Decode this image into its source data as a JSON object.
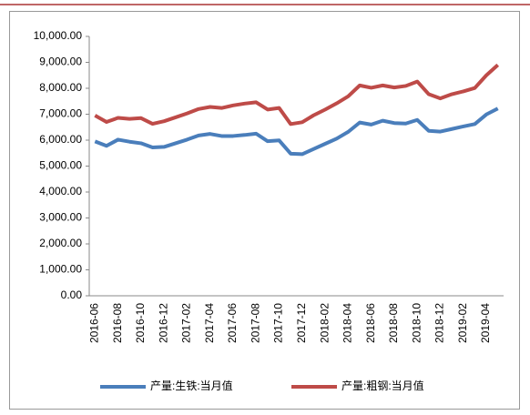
{
  "chart_data": {
    "type": "line",
    "categories": [
      "2016-06",
      null,
      "2016-08",
      null,
      "2016-10",
      null,
      "2016-12",
      null,
      "2017-02",
      null,
      "2017-04",
      null,
      "2017-06",
      null,
      "2017-08",
      null,
      "2017-10",
      null,
      "2017-12",
      null,
      "2018-02",
      null,
      "2018-04",
      null,
      "2018-06",
      null,
      "2018-08",
      null,
      "2018-10",
      null,
      "2018-12",
      null,
      "2019-02",
      null,
      "2019-04",
      null
    ],
    "series": [
      {
        "name": "产量:生铁:当月值",
        "color": "#4a7ebb",
        "values": [
          5950,
          5780,
          6020,
          5940,
          5880,
          5720,
          5740,
          5880,
          6020,
          6180,
          6240,
          6160,
          6160,
          6200,
          6250,
          5960,
          5990,
          5480,
          5460,
          5660,
          5860,
          6060,
          6320,
          6680,
          6600,
          6750,
          6660,
          6640,
          6780,
          6360,
          6330,
          6430,
          6530,
          6620,
          6990,
          7220
        ]
      },
      {
        "name": "产量:粗钢:当月值",
        "color": "#be4b48",
        "values": [
          6950,
          6700,
          6860,
          6820,
          6850,
          6630,
          6730,
          6880,
          7030,
          7200,
          7280,
          7240,
          7340,
          7410,
          7460,
          7180,
          7240,
          6620,
          6690,
          6960,
          7180,
          7420,
          7690,
          8110,
          8020,
          8110,
          8030,
          8090,
          8260,
          7770,
          7610,
          7770,
          7880,
          8010,
          8500,
          8900
        ]
      }
    ],
    "ylim": [
      0,
      10000
    ],
    "yticks": [
      {
        "value": 0,
        "label": "0.00"
      },
      {
        "value": 1000,
        "label": "1,000.00"
      },
      {
        "value": 2000,
        "label": "2,000.00"
      },
      {
        "value": 3000,
        "label": "3,000.00"
      },
      {
        "value": 4000,
        "label": "4,000.00"
      },
      {
        "value": 5000,
        "label": "5,000.00"
      },
      {
        "value": 6000,
        "label": "6,000.00"
      },
      {
        "value": 7000,
        "label": "7,000.00"
      },
      {
        "value": 8000,
        "label": "8,000.00"
      },
      {
        "value": 9000,
        "label": "9,000.00"
      },
      {
        "value": 10000,
        "label": "10,000.00"
      }
    ],
    "grid": false,
    "legend": "bottom"
  }
}
